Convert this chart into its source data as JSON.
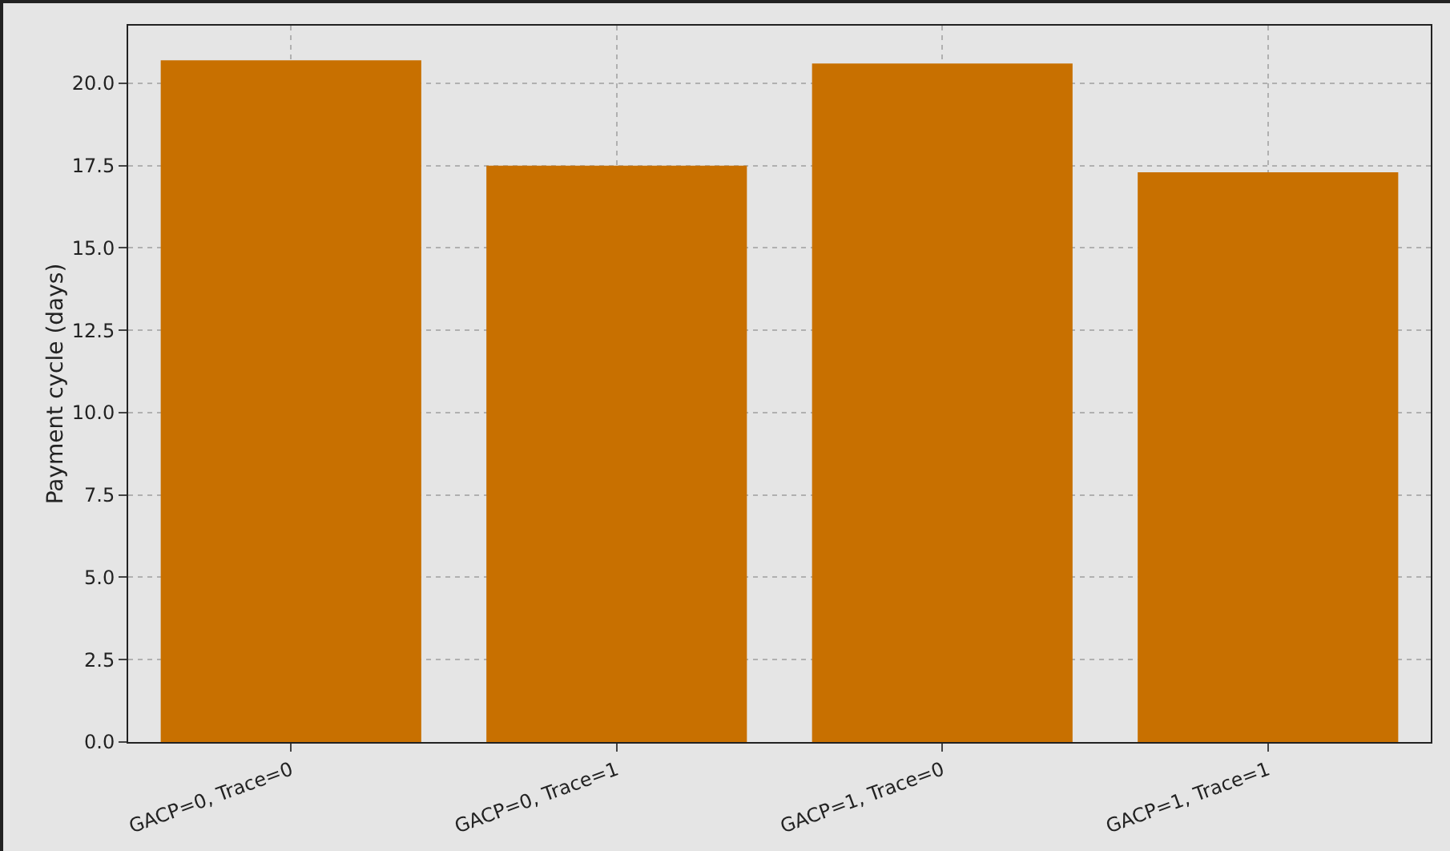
{
  "chart_data": {
    "type": "bar",
    "ylabel": "Payment cycle (days)",
    "categories": [
      "GACP=0, Trace=0",
      "GACP=0, Trace=1",
      "GACP=1, Trace=0",
      "GACP=1, Trace=1"
    ],
    "values": [
      20.7,
      17.5,
      20.6,
      17.3
    ],
    "color": "#c87000",
    "ylim": [
      0,
      21.75
    ],
    "yticks": [
      {
        "value": 0,
        "label": "0.0"
      },
      {
        "value": 2.5,
        "label": "2.5"
      },
      {
        "value": 5,
        "label": "5.0"
      },
      {
        "value": 7.5,
        "label": "7.5"
      },
      {
        "value": 10,
        "label": "10.0"
      },
      {
        "value": 12.5,
        "label": "12.5"
      },
      {
        "value": 15,
        "label": "15.0"
      },
      {
        "value": 17.5,
        "label": "17.5"
      },
      {
        "value": 20,
        "label": "20.0"
      }
    ],
    "grid": true
  }
}
